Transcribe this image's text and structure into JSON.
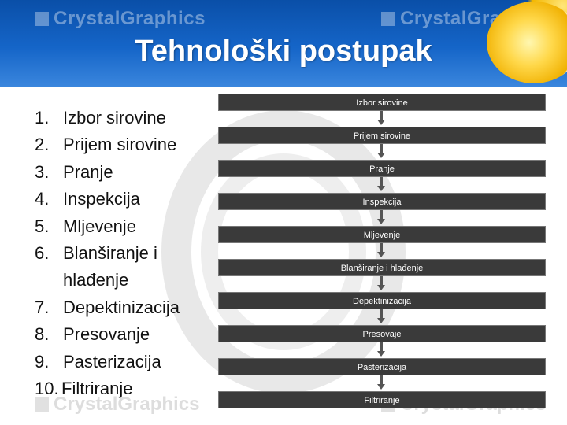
{
  "header": {
    "title": "Tehnološki postupak",
    "watermark": "CrystalGraphics"
  },
  "steps": [
    {
      "num": "1.",
      "text": "Izbor sirovine"
    },
    {
      "num": "2.",
      "text": "Prijem sirovine"
    },
    {
      "num": "3.",
      "text": "Pranje"
    },
    {
      "num": "4.",
      "text": "Inspekcija"
    },
    {
      "num": "5.",
      "text": "Mljevenje"
    },
    {
      "num": "6.",
      "text": "Blanširanje i"
    },
    {
      "num": "",
      "text": "hlađenje"
    },
    {
      "num": "7.",
      "text": "Depektinizacija"
    },
    {
      "num": "8.",
      "text": "Presovanje"
    },
    {
      "num": "9.",
      "text": "Pasterizacija"
    },
    {
      "num": "10.",
      "text": "Filtriranje"
    }
  ],
  "flow": [
    "Izbor sirovine",
    "Prijem sirovine",
    "Pranje",
    "Inspekcija",
    "Mljevenje",
    "Blanširanje i hlađenje",
    "Depektinizacija",
    "Presovaje",
    "Pasterizacija",
    "Filtriranje"
  ],
  "colors": {
    "header_blue": "#1565c8",
    "flow_box": "#3a3a3a",
    "arrow": "#555555"
  }
}
